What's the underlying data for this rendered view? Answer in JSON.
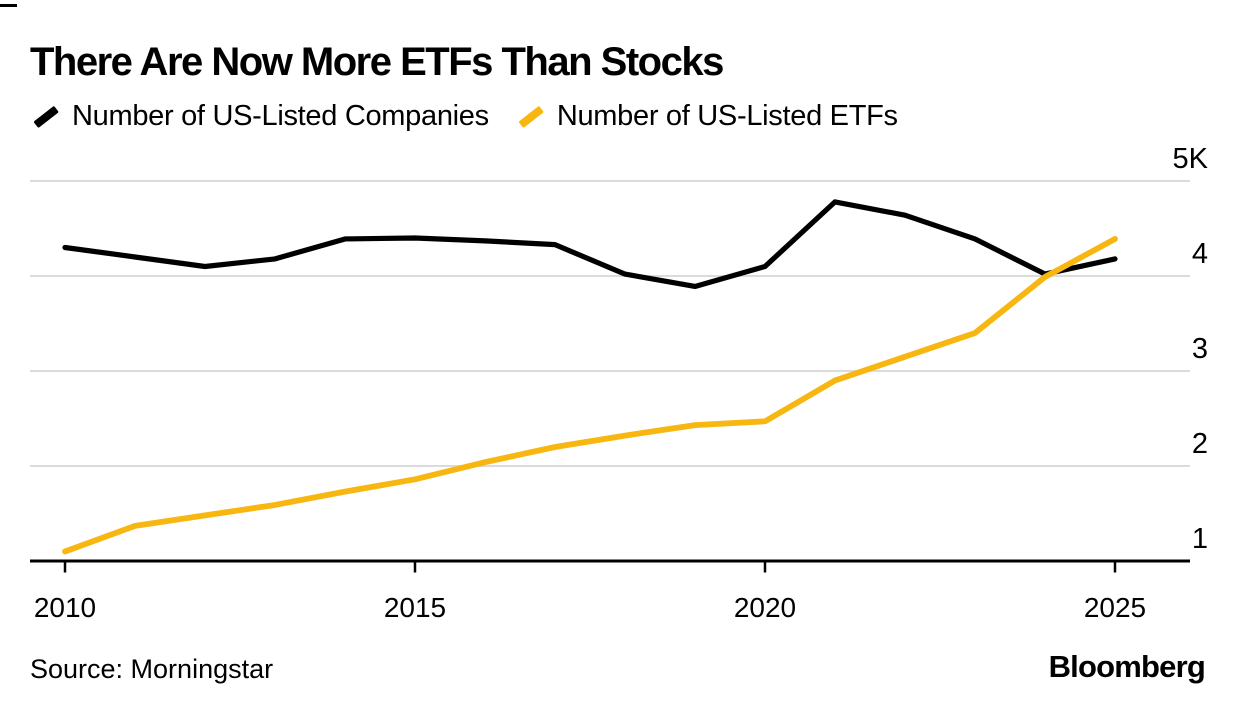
{
  "header": {
    "title": "There Are Now More ETFs Than Stocks"
  },
  "legend": [
    {
      "id": "companies",
      "label": "Number of US-Listed Companies",
      "color": "#000000",
      "icon": "line-swatch-icon"
    },
    {
      "id": "etfs",
      "label": "Number of US-Listed ETFs",
      "color": "#F8B710",
      "icon": "line-swatch-icon"
    }
  ],
  "footer": {
    "source": "Source: Morningstar",
    "brand": "Bloomberg"
  },
  "colors": {
    "companies_line": "#000000",
    "etfs_line": "#F8B710",
    "gridline": "#DBDBDB",
    "axis": "#000000"
  },
  "chart_data": {
    "type": "line",
    "title": "There Are Now More ETFs Than Stocks",
    "xlabel": "",
    "ylabel": "",
    "x": [
      2010,
      2011,
      2012,
      2013,
      2014,
      2015,
      2016,
      2017,
      2018,
      2019,
      2020,
      2021,
      2022,
      2023,
      2024,
      2025
    ],
    "series": [
      {
        "id": "companies",
        "name": "Number of US-Listed Companies",
        "color": "#000000",
        "values": [
          4300,
          4200,
          4100,
          4180,
          4390,
          4400,
          4370,
          4330,
          4020,
          3890,
          4100,
          4780,
          4640,
          4390,
          4020,
          4180
        ]
      },
      {
        "id": "etfs",
        "name": "Number of US-Listed ETFs",
        "color": "#F8B710",
        "values": [
          1100,
          1370,
          1480,
          1590,
          1730,
          1860,
          2040,
          2200,
          2320,
          2430,
          2470,
          2900,
          3150,
          3400,
          3990,
          4390
        ]
      }
    ],
    "x_ticks": [
      2010,
      2015,
      2020,
      2025
    ],
    "y_ticks": [
      {
        "label": "5K",
        "value": 5000
      },
      {
        "label": "4",
        "value": 4000
      },
      {
        "label": "3",
        "value": 3000
      },
      {
        "label": "2",
        "value": 2000
      },
      {
        "label": "1",
        "value": 1000
      }
    ],
    "xlim": [
      2010,
      2025
    ],
    "ylim": [
      1000,
      5000
    ],
    "grid": "horizontal",
    "y_axis_side": "right",
    "legend_position": "top-left"
  }
}
